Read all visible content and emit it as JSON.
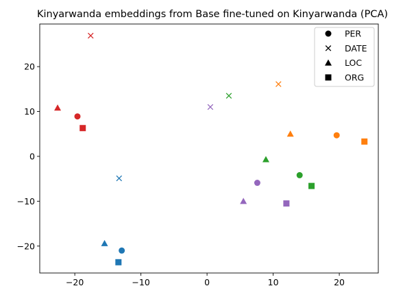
{
  "chart_data": {
    "type": "scatter",
    "title": "Kinyarwanda embeddings from Base fine-tuned on Kinyarwanda (PCA)",
    "xlabel": "",
    "ylabel": "",
    "xlim": [
      -25.3,
      25.9
    ],
    "ylim": [
      -26,
      29.5
    ],
    "x_ticks": [
      -20,
      -10,
      0,
      10,
      20
    ],
    "x_tick_labels": [
      "−20",
      "−10",
      "0",
      "10",
      "20"
    ],
    "y_ticks": [
      -20,
      -10,
      0,
      10,
      20
    ],
    "y_tick_labels": [
      "−20",
      "−10",
      "0",
      "10",
      "20"
    ],
    "grid": false,
    "legend_position": "top-right",
    "legend": [
      {
        "label": "PER",
        "marker": "circle"
      },
      {
        "label": "DATE",
        "marker": "x"
      },
      {
        "label": "LOC",
        "marker": "triangle"
      },
      {
        "label": "ORG",
        "marker": "square"
      }
    ],
    "colors": {
      "red": "#d62728",
      "blue": "#1f77b4",
      "green": "#2ca02c",
      "orange": "#ff7f0e",
      "purple": "#9467bd"
    },
    "points": [
      {
        "label": "PER",
        "marker": "circle",
        "color": "red",
        "x": -19.6,
        "y": 8.9
      },
      {
        "label": "ORG",
        "marker": "square",
        "color": "red",
        "x": -18.8,
        "y": 6.3
      },
      {
        "label": "LOC",
        "marker": "triangle",
        "color": "red",
        "x": -22.6,
        "y": 10.8
      },
      {
        "label": "DATE",
        "marker": "x",
        "color": "red",
        "x": -17.6,
        "y": 26.9
      },
      {
        "label": "DATE",
        "marker": "x",
        "color": "blue",
        "x": -13.3,
        "y": -4.9
      },
      {
        "label": "LOC",
        "marker": "triangle",
        "color": "blue",
        "x": -15.5,
        "y": -19.4
      },
      {
        "label": "PER",
        "marker": "circle",
        "color": "blue",
        "x": -12.9,
        "y": -21.0
      },
      {
        "label": "ORG",
        "marker": "square",
        "color": "blue",
        "x": -13.4,
        "y": -23.6
      },
      {
        "label": "DATE",
        "marker": "x",
        "color": "green",
        "x": 3.3,
        "y": 13.5
      },
      {
        "label": "LOC",
        "marker": "triangle",
        "color": "green",
        "x": 8.9,
        "y": -0.7
      },
      {
        "label": "PER",
        "marker": "circle",
        "color": "green",
        "x": 14.0,
        "y": -4.2
      },
      {
        "label": "ORG",
        "marker": "square",
        "color": "green",
        "x": 15.8,
        "y": -6.6
      },
      {
        "label": "DATE",
        "marker": "x",
        "color": "orange",
        "x": 10.8,
        "y": 16.1
      },
      {
        "label": "LOC",
        "marker": "triangle",
        "color": "orange",
        "x": 12.6,
        "y": 5.0
      },
      {
        "label": "PER",
        "marker": "circle",
        "color": "orange",
        "x": 19.6,
        "y": 4.7
      },
      {
        "label": "ORG",
        "marker": "square",
        "color": "orange",
        "x": 23.8,
        "y": 3.3
      },
      {
        "label": "DATE",
        "marker": "x",
        "color": "purple",
        "x": 0.5,
        "y": 11.0
      },
      {
        "label": "PER",
        "marker": "circle",
        "color": "purple",
        "x": 7.6,
        "y": -5.9
      },
      {
        "label": "LOC",
        "marker": "triangle",
        "color": "purple",
        "x": 5.5,
        "y": -10.0
      },
      {
        "label": "ORG",
        "marker": "square",
        "color": "purple",
        "x": 12.0,
        "y": -10.5
      }
    ]
  }
}
